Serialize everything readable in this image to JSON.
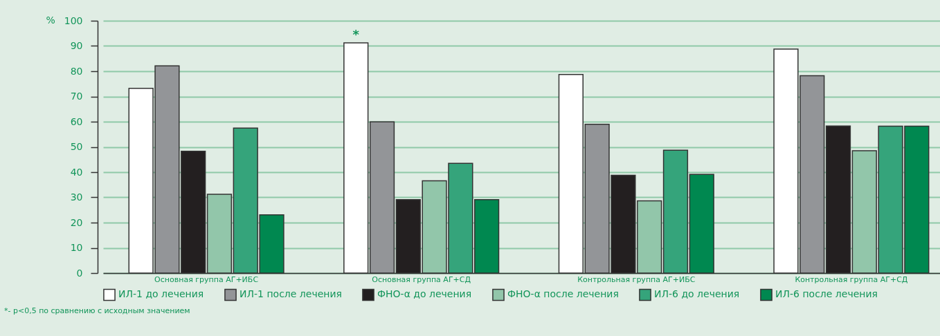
{
  "chart_data": {
    "type": "bar",
    "ylabel": "%",
    "categories": [
      "Основная группа АГ+ИБС",
      "Основная группа АГ+СД",
      "Контрольная группа АГ+ИБС",
      "Контрольная группа АГ+СД"
    ],
    "series": [
      {
        "name": "ИЛ-1 до лечения",
        "color": "#ffffff",
        "values": [
          73.2,
          91.2,
          78.7,
          88.8
        ]
      },
      {
        "name": "ИЛ-1 после лечения",
        "color": "#939598",
        "values": [
          82.1,
          59.9,
          59.0,
          78.2
        ]
      },
      {
        "name": "ФНО-α до лечения",
        "color": "#231f20",
        "values": [
          48.3,
          29.1,
          38.8,
          58.3
        ]
      },
      {
        "name": "ФНО-α после лечения",
        "color": "#92c6aa",
        "values": [
          31.2,
          36.6,
          28.6,
          48.5
        ]
      },
      {
        "name": "ИЛ-6 до лечения",
        "color": "#35a47b",
        "values": [
          57.5,
          43.5,
          48.7,
          58.2
        ]
      },
      {
        "name": "ИЛ-6 после лечения",
        "color": "#008850",
        "values": [
          23.1,
          29.1,
          39.1,
          58.2
        ]
      }
    ],
    "ylim": [
      0,
      100
    ],
    "yticks": [
      0,
      10,
      20,
      30,
      40,
      50,
      60,
      70,
      80,
      90,
      100
    ],
    "grid": "y",
    "legend": "bottom",
    "annotations": [
      "*",
      "*- p<0,5 по сравнению с исходным значением"
    ]
  }
}
